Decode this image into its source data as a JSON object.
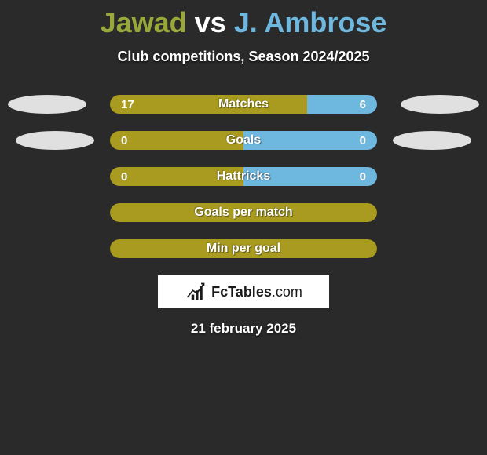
{
  "title": {
    "player1": "Jawad",
    "vs": "vs",
    "player2": "J. Ambrose"
  },
  "subtitle": "Club competitions, Season 2024/2025",
  "colors": {
    "p1": "#a89b1f",
    "p2": "#6eb8e0",
    "pill": "#e0e0e0",
    "title_p1": "#9aa83a",
    "title_p2": "#6eb8e0"
  },
  "rows": [
    {
      "label": "Matches",
      "left_val": "17",
      "right_val": "6",
      "left_pct": 73.9,
      "right_pct": 26.1,
      "has_pills": true,
      "pill_class": "r1"
    },
    {
      "label": "Goals",
      "left_val": "0",
      "right_val": "0",
      "left_pct": 50,
      "right_pct": 50,
      "has_pills": true,
      "pill_class": "r2"
    },
    {
      "label": "Hattricks",
      "left_val": "0",
      "right_val": "0",
      "left_pct": 50,
      "right_pct": 50,
      "has_pills": false
    },
    {
      "label": "Goals per match",
      "full": true
    },
    {
      "label": "Min per goal",
      "full": true
    }
  ],
  "logo": {
    "brand": "FcTables",
    "domain": ".com"
  },
  "date": "21 february 2025"
}
